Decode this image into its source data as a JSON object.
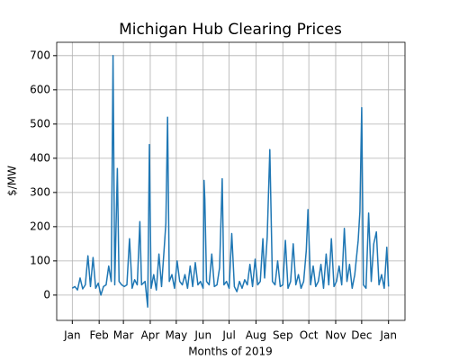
{
  "chart_data": {
    "type": "line",
    "title": "Michigan Hub Clearing Prices",
    "xlabel": "Months of 2019",
    "ylabel": "$/MW",
    "color": "#1f77b4",
    "grid": true,
    "x": [
      0,
      3,
      6,
      9,
      12,
      15,
      18,
      21,
      24,
      27,
      30,
      33,
      36,
      39,
      42,
      45,
      47,
      49,
      52,
      54,
      57,
      60,
      63,
      66,
      69,
      72,
      75,
      78,
      80,
      84,
      87,
      89,
      91,
      94,
      97,
      100,
      103,
      106,
      108,
      110,
      112,
      115,
      118,
      121,
      124,
      127,
      130,
      133,
      136,
      139,
      142,
      145,
      148,
      151,
      152,
      153,
      155,
      158,
      161,
      164,
      167,
      170,
      173,
      175,
      178,
      181,
      184,
      187,
      190,
      193,
      196,
      199,
      202,
      205,
      208,
      211,
      214,
      217,
      220,
      222,
      225,
      228,
      231,
      234,
      237,
      240,
      243,
      246,
      249,
      252,
      255,
      258,
      261,
      264,
      267,
      270,
      272,
      275,
      278,
      281,
      284,
      287,
      290,
      293,
      296,
      299,
      302,
      305,
      308,
      311,
      314,
      317,
      320,
      323,
      326,
      330,
      332,
      334,
      336,
      339,
      342,
      345,
      348,
      351,
      354,
      357,
      360,
      363,
      365
    ],
    "values": [
      20,
      25,
      15,
      50,
      18,
      30,
      115,
      25,
      110,
      20,
      35,
      0,
      25,
      30,
      85,
      40,
      700,
      30,
      370,
      40,
      30,
      25,
      30,
      165,
      20,
      45,
      30,
      215,
      30,
      40,
      -35,
      440,
      20,
      60,
      15,
      120,
      25,
      135,
      210,
      520,
      40,
      60,
      20,
      100,
      40,
      30,
      60,
      20,
      85,
      25,
      95,
      30,
      40,
      20,
      335,
      280,
      40,
      30,
      120,
      25,
      30,
      80,
      340,
      30,
      40,
      20,
      180,
      25,
      10,
      40,
      20,
      45,
      30,
      90,
      25,
      105,
      30,
      40,
      165,
      50,
      170,
      425,
      40,
      30,
      100,
      25,
      30,
      160,
      20,
      40,
      150,
      30,
      60,
      20,
      40,
      130,
      250,
      30,
      85,
      25,
      40,
      90,
      20,
      120,
      30,
      165,
      25,
      40,
      85,
      30,
      195,
      40,
      90,
      20,
      60,
      160,
      245,
      548,
      30,
      20,
      240,
      40,
      150,
      185,
      30,
      60,
      20,
      140,
      25
    ],
    "xlim": [
      -18,
      384
    ],
    "ylim": [
      -74,
      739
    ],
    "xticks": [
      {
        "value": 0,
        "label": "Jan"
      },
      {
        "value": 31,
        "label": "Feb"
      },
      {
        "value": 59,
        "label": "Mar"
      },
      {
        "value": 90,
        "label": "Apr"
      },
      {
        "value": 120,
        "label": "May"
      },
      {
        "value": 151,
        "label": "Jun"
      },
      {
        "value": 181,
        "label": "Jul"
      },
      {
        "value": 212,
        "label": "Aug"
      },
      {
        "value": 243,
        "label": "Sep"
      },
      {
        "value": 273,
        "label": "Oct"
      },
      {
        "value": 304,
        "label": "Nov"
      },
      {
        "value": 334,
        "label": "Dec"
      },
      {
        "value": 365,
        "label": "Jan"
      }
    ],
    "yticks": [
      0,
      100,
      200,
      300,
      400,
      500,
      600,
      700
    ]
  }
}
